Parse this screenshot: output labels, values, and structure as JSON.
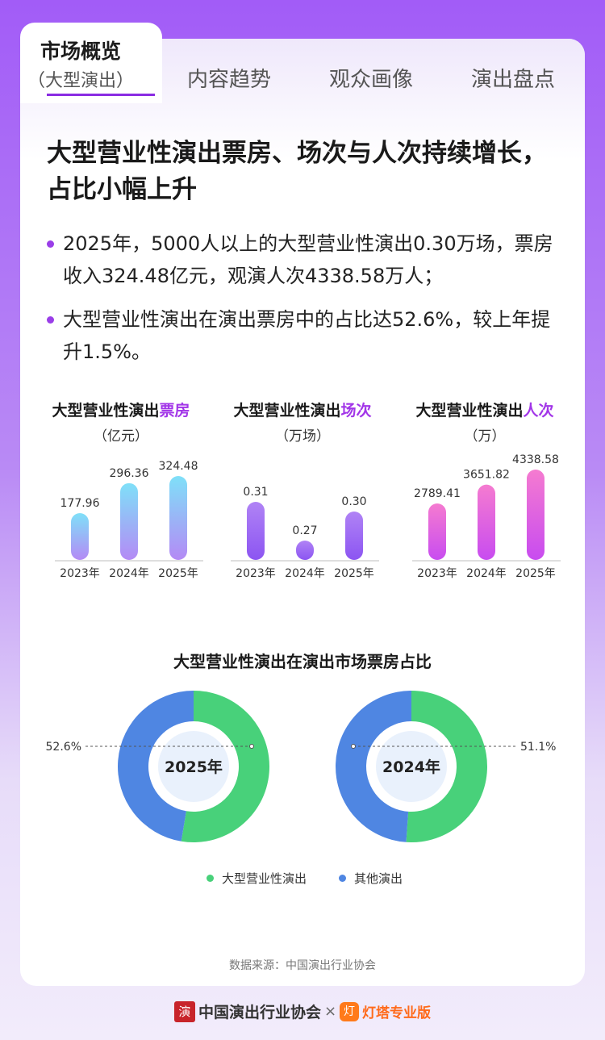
{
  "tabs": {
    "active": {
      "label": "市场概览",
      "sub": "（大型演出）"
    },
    "others": [
      "内容趋势",
      "观众画像",
      "演出盘点"
    ]
  },
  "headline": "大型营业性演出票房、场次与人次持续增长，占比小幅上升",
  "bullets": [
    "2025年，5000人以上的大型营业性演出0.30万场，票房收入324.48亿元，观演人次4338.58万人；",
    "大型营业性演出在演出票房中的占比达52.6%，较上年提升1.5%。"
  ],
  "mini_charts": [
    {
      "title_prefix": "大型营业性演出",
      "title_highlight": "票房",
      "unit": "（亿元）"
    },
    {
      "title_prefix": "大型营业性演出",
      "title_highlight": "场次",
      "unit": "（万场）"
    },
    {
      "title_prefix": "大型营业性演出",
      "title_highlight": "人次",
      "unit": "（万）"
    }
  ],
  "donut_title": "大型营业性演出在演出市场票房占比",
  "legend": [
    {
      "label": "大型营业性演出",
      "color": "#48d17a"
    },
    {
      "label": "其他演出",
      "color": "#4f86e2"
    }
  ],
  "source": "数据来源：中国演出行业协会",
  "footer": {
    "seal_text": "演",
    "org": "中国演出行业协会",
    "times": "×",
    "lamp_icon": "灯",
    "brand": "灯塔专业版"
  },
  "chart_data": [
    {
      "type": "bar",
      "title": "大型营业性演出票房",
      "ylabel": "亿元",
      "categories": [
        "2023年",
        "2024年",
        "2025年"
      ],
      "values": [
        177.96,
        296.36,
        324.48
      ],
      "labels": [
        "177.96",
        "296.36",
        "324.48"
      ],
      "colors": [
        "#7fe0f8",
        "#b48af5"
      ]
    },
    {
      "type": "bar",
      "title": "大型营业性演出场次",
      "ylabel": "万场",
      "categories": [
        "2023年",
        "2024年",
        "2025年"
      ],
      "values": [
        0.31,
        0.27,
        0.3
      ],
      "labels": [
        "0.31",
        "0.27",
        "0.30"
      ],
      "colors": [
        "#b083f5",
        "#8c55f2"
      ]
    },
    {
      "type": "bar",
      "title": "大型营业性演出人次",
      "ylabel": "万",
      "categories": [
        "2023年",
        "2024年",
        "2025年"
      ],
      "values": [
        2789.41,
        3651.82,
        4338.58
      ],
      "labels": [
        "2789.41",
        "3651.82",
        "4338.58"
      ],
      "colors": [
        "#f57bd0",
        "#c84cf0"
      ]
    },
    {
      "type": "pie",
      "center_label": "2025年",
      "slices": [
        {
          "name": "大型营业性演出",
          "value": 52.6,
          "label": "52.6%"
        },
        {
          "name": "其他演出",
          "value": 47.4
        }
      ]
    },
    {
      "type": "pie",
      "center_label": "2024年",
      "slices": [
        {
          "name": "大型营业性演出",
          "value": 51.1,
          "label": "51.1%"
        },
        {
          "name": "其他演出",
          "value": 48.9
        }
      ]
    }
  ]
}
